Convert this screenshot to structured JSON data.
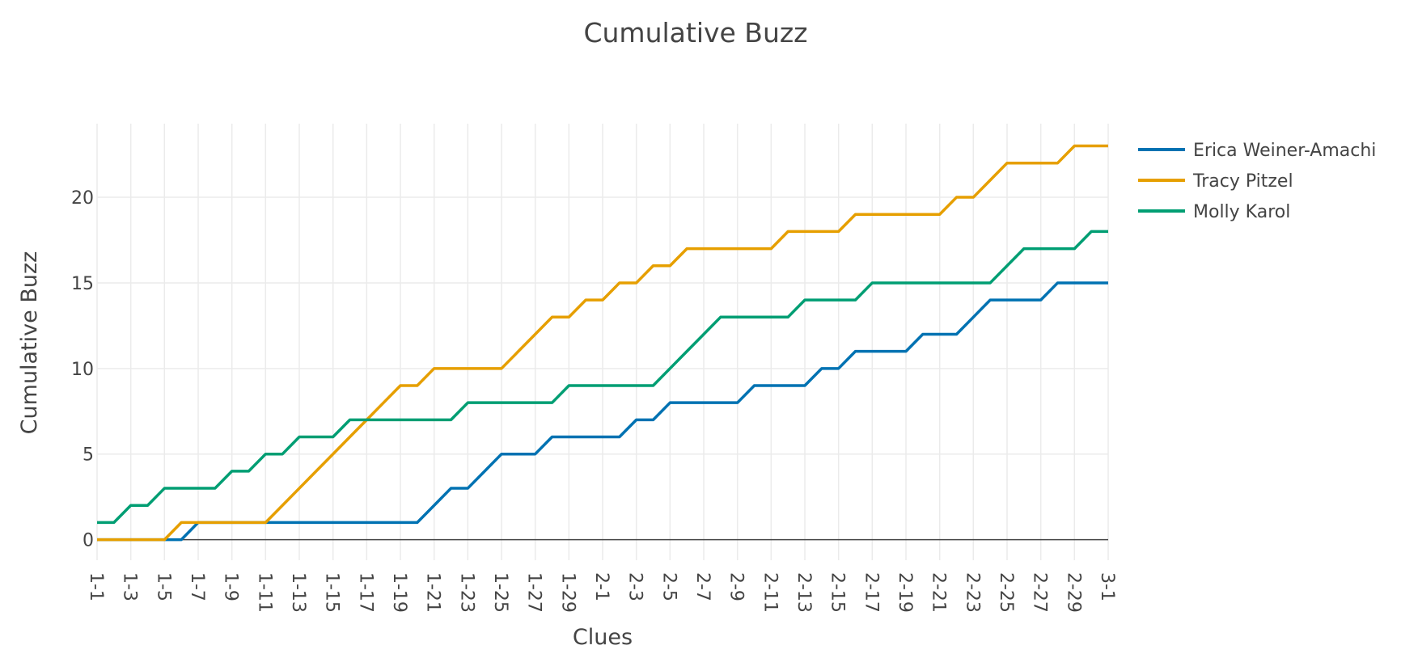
{
  "chart_data": {
    "type": "line",
    "title": "Cumulative Buzz",
    "xlabel": "Clues",
    "ylabel": "Cumulative Buzz",
    "x": [
      "1-1",
      "1-2",
      "1-3",
      "1-4",
      "1-5",
      "1-6",
      "1-7",
      "1-8",
      "1-9",
      "1-10",
      "1-11",
      "1-12",
      "1-13",
      "1-14",
      "1-15",
      "1-16",
      "1-17",
      "1-18",
      "1-19",
      "1-20",
      "1-21",
      "1-22",
      "1-23",
      "1-24",
      "1-25",
      "1-26",
      "1-27",
      "1-28",
      "1-29",
      "1-30",
      "2-1",
      "2-2",
      "2-3",
      "2-4",
      "2-5",
      "2-6",
      "2-7",
      "2-8",
      "2-9",
      "2-10",
      "2-11",
      "2-12",
      "2-13",
      "2-14",
      "2-15",
      "2-16",
      "2-17",
      "2-18",
      "2-19",
      "2-20",
      "2-21",
      "2-22",
      "2-23",
      "2-24",
      "2-25",
      "2-26",
      "2-27",
      "2-28",
      "2-29",
      "2-30",
      "3-1"
    ],
    "x_tick_labels": [
      "1-1",
      "1-3",
      "1-5",
      "1-7",
      "1-9",
      "1-11",
      "1-13",
      "1-15",
      "1-17",
      "1-19",
      "1-21",
      "1-23",
      "1-25",
      "1-27",
      "1-29",
      "2-1",
      "2-3",
      "2-5",
      "2-7",
      "2-9",
      "2-11",
      "2-13",
      "2-15",
      "2-17",
      "2-19",
      "2-21",
      "2-23",
      "2-25",
      "2-27",
      "2-29",
      "3-1"
    ],
    "y_ticks": [
      0,
      5,
      10,
      15,
      20
    ],
    "ylim": [
      -1.2,
      24.3
    ],
    "grid": true,
    "legend_position": "top-right",
    "series": [
      {
        "name": "Erica Weiner-Amachi",
        "color": "#0072B2",
        "values": [
          0,
          0,
          0,
          0,
          0,
          0,
          1,
          1,
          1,
          1,
          1,
          1,
          1,
          1,
          1,
          1,
          1,
          1,
          1,
          1,
          2,
          3,
          3,
          4,
          5,
          5,
          5,
          6,
          6,
          6,
          6,
          6,
          7,
          7,
          8,
          8,
          8,
          8,
          8,
          9,
          9,
          9,
          9,
          10,
          10,
          11,
          11,
          11,
          11,
          12,
          12,
          12,
          13,
          14,
          14,
          14,
          14,
          15,
          15,
          15,
          15
        ]
      },
      {
        "name": "Tracy Pitzel",
        "color": "#E69F00",
        "values": [
          0,
          0,
          0,
          0,
          0,
          1,
          1,
          1,
          1,
          1,
          1,
          2,
          3,
          4,
          5,
          6,
          7,
          8,
          9,
          9,
          10,
          10,
          10,
          10,
          10,
          11,
          12,
          13,
          13,
          14,
          14,
          15,
          15,
          16,
          16,
          17,
          17,
          17,
          17,
          17,
          17,
          18,
          18,
          18,
          18,
          19,
          19,
          19,
          19,
          19,
          19,
          20,
          20,
          21,
          22,
          22,
          22,
          22,
          23,
          23,
          23
        ]
      },
      {
        "name": "Molly Karol",
        "color": "#009E73",
        "values": [
          1,
          1,
          2,
          2,
          3,
          3,
          3,
          3,
          4,
          4,
          5,
          5,
          6,
          6,
          6,
          7,
          7,
          7,
          7,
          7,
          7,
          7,
          8,
          8,
          8,
          8,
          8,
          8,
          9,
          9,
          9,
          9,
          9,
          9,
          10,
          11,
          12,
          13,
          13,
          13,
          13,
          13,
          14,
          14,
          14,
          14,
          15,
          15,
          15,
          15,
          15,
          15,
          15,
          15,
          16,
          17,
          17,
          17,
          17,
          18,
          18
        ]
      }
    ]
  }
}
